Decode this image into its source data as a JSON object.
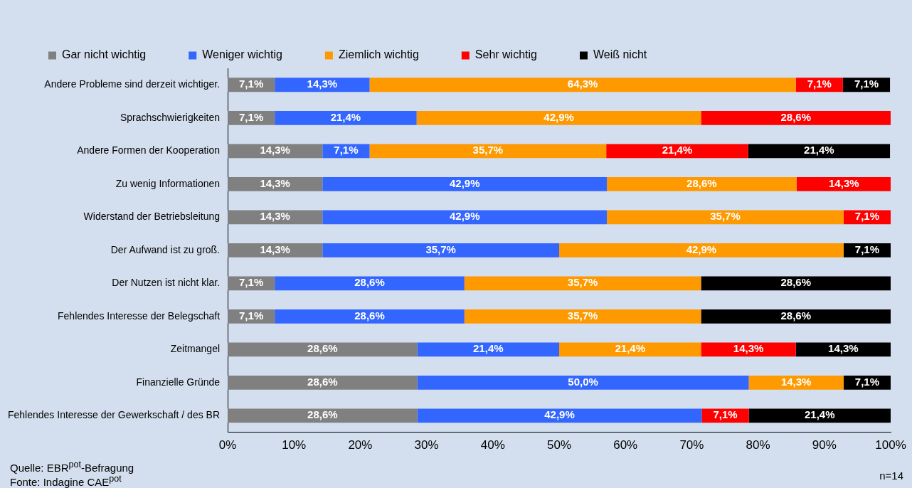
{
  "chart_data": {
    "type": "bar",
    "orientation": "horizontal",
    "stacked": true,
    "categories": [
      "Andere Probleme sind derzeit wichtiger.",
      "Sprachschwierigkeiten",
      "Andere Formen der Kooperation",
      "Zu wenig Informationen",
      "Widerstand der Betriebsleitung",
      "Der Aufwand ist zu groß.",
      "Der Nutzen ist nicht klar.",
      "Fehlendes Interesse der Belegschaft",
      "Zeitmangel",
      "Finanzielle Gründe",
      "Fehlendes Interesse der Gewerkschaft / des BR"
    ],
    "series": [
      {
        "name": "Gar nicht wichtig",
        "color": "#808080",
        "values": [
          7.1,
          7.1,
          14.3,
          14.3,
          14.3,
          14.3,
          7.1,
          7.1,
          28.6,
          28.6,
          28.6
        ],
        "value_labels": [
          "7,1%",
          "7,1%",
          "14,3%",
          "14,3%",
          "14,3%",
          "14,3%",
          "7,1%",
          "7,1%",
          "28,6%",
          "28,6%",
          "28,6%"
        ]
      },
      {
        "name": "Weniger wichtig",
        "color": "#3366ff",
        "values": [
          14.3,
          21.4,
          7.1,
          42.9,
          42.9,
          35.7,
          28.6,
          28.6,
          21.4,
          50.0,
          42.9
        ],
        "value_labels": [
          "14,3%",
          "21,4%",
          "7,1%",
          "42,9%",
          "42,9%",
          "35,7%",
          "28,6%",
          "28,6%",
          "21,4%",
          "50,0%",
          "42,9%"
        ]
      },
      {
        "name": "Ziemlich wichtig",
        "color": "#ff9900",
        "values": [
          64.3,
          42.9,
          35.7,
          28.6,
          35.7,
          42.9,
          35.7,
          35.7,
          21.4,
          14.3,
          null
        ],
        "value_labels": [
          "64,3%",
          "42,9%",
          "35,7%",
          "28,6%",
          "35,7%",
          "42,9%",
          "35,7%",
          "35,7%",
          "21,4%",
          "14,3%",
          null
        ]
      },
      {
        "name": "Sehr wichtig",
        "color": "#ff0000",
        "values": [
          7.1,
          28.6,
          21.4,
          14.3,
          7.1,
          null,
          null,
          null,
          14.3,
          null,
          7.1
        ],
        "value_labels": [
          "7,1%",
          "28,6%",
          "21,4%",
          "14,3%",
          "7,1%",
          null,
          null,
          null,
          "14,3%",
          null,
          "7,1%"
        ]
      },
      {
        "name": "Weiß nicht",
        "color": "#000000",
        "values": [
          7.1,
          null,
          21.4,
          null,
          null,
          7.1,
          28.6,
          28.6,
          14.3,
          7.1,
          21.4
        ],
        "value_labels": [
          "7,1%",
          null,
          "21,4%",
          null,
          null,
          "7,1%",
          "28,6%",
          "28,6%",
          "14,3%",
          "7,1%",
          "21,4%"
        ]
      }
    ],
    "xlim": [
      0,
      100
    ],
    "xticks": [
      {
        "value": 0,
        "label": "0%"
      },
      {
        "value": 10,
        "label": "10%"
      },
      {
        "value": 20,
        "label": "20%"
      },
      {
        "value": 30,
        "label": "30%"
      },
      {
        "value": 40,
        "label": "40%"
      },
      {
        "value": 50,
        "label": "50%"
      },
      {
        "value": 60,
        "label": "60%"
      },
      {
        "value": 70,
        "label": "70%"
      },
      {
        "value": 80,
        "label": "80%"
      },
      {
        "value": 90,
        "label": "90%"
      },
      {
        "value": 100,
        "label": "100%"
      }
    ],
    "grid": false,
    "legend": "top",
    "annotations": [
      "Quelle: EBR$^{pot}$-Befragung",
      "Fonte: Indagine CAE$^{pot}$",
      "n=14"
    ]
  }
}
